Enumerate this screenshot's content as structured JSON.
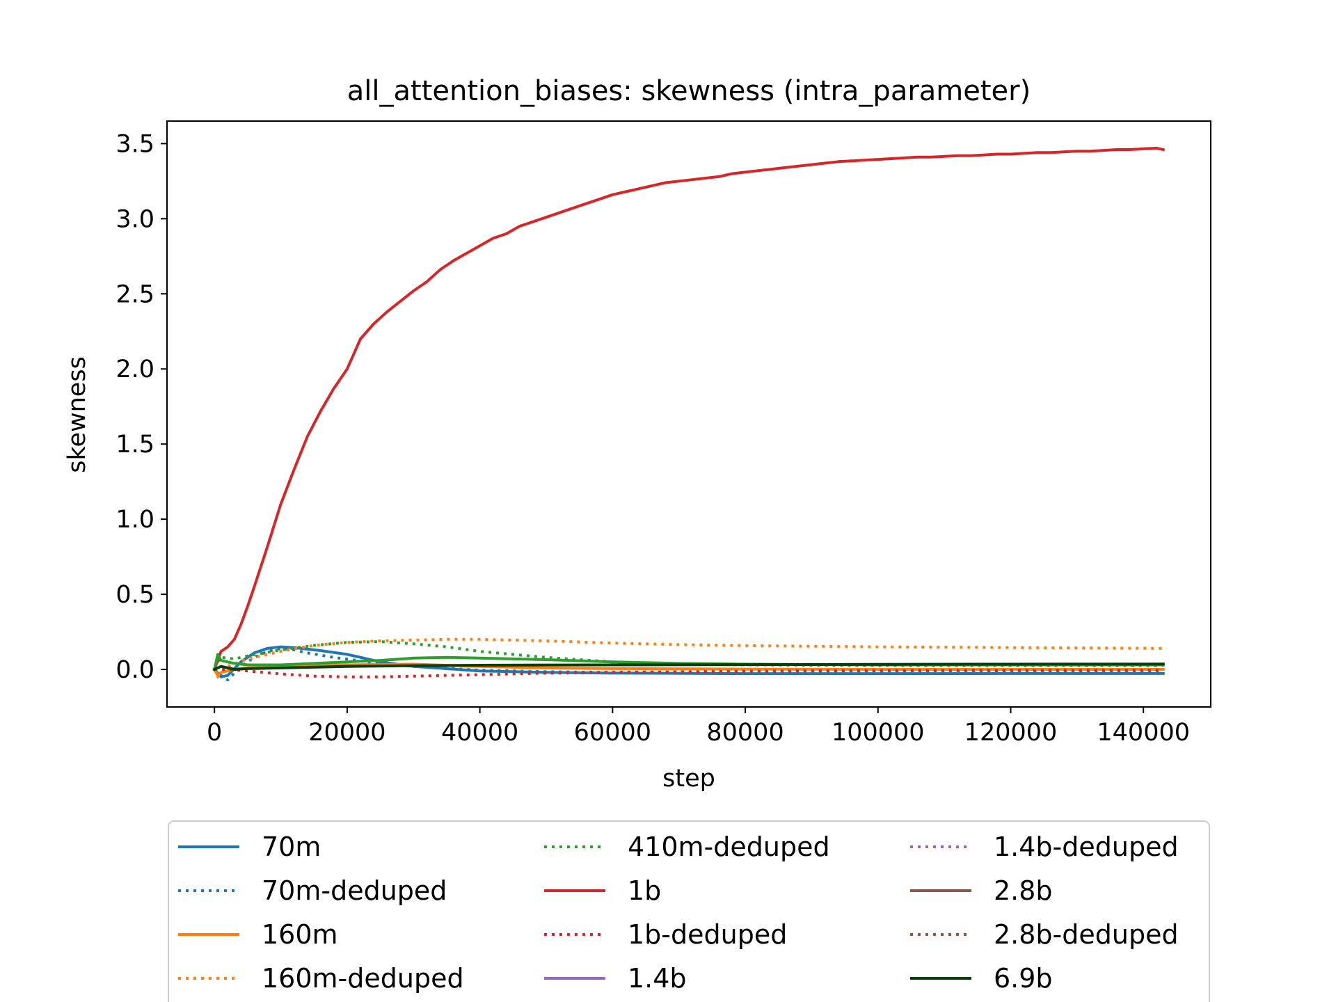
{
  "chart_data": {
    "type": "line",
    "title": "all_attention_biases: skewness (intra_parameter)",
    "xlabel": "step",
    "ylabel": "skewness",
    "xlim": [
      -7150,
      150150
    ],
    "ylim": [
      -0.25,
      3.65
    ],
    "xticks": [
      0,
      20000,
      40000,
      60000,
      80000,
      100000,
      120000,
      140000
    ],
    "yticks": [
      0.0,
      0.5,
      1.0,
      1.5,
      2.0,
      2.5,
      3.0,
      3.5
    ],
    "grid": false,
    "legend_placement": "below plot, 3 columns",
    "series": [
      {
        "name": "70m",
        "color": "#1f77b4",
        "style": "solid",
        "points": [
          [
            0,
            0.0
          ],
          [
            1000,
            -0.05
          ],
          [
            2000,
            -0.04
          ],
          [
            4000,
            0.05
          ],
          [
            6000,
            0.11
          ],
          [
            8000,
            0.14
          ],
          [
            10000,
            0.15
          ],
          [
            12000,
            0.145
          ],
          [
            14000,
            0.135
          ],
          [
            16000,
            0.125
          ],
          [
            20000,
            0.1
          ],
          [
            25000,
            0.05
          ],
          [
            30000,
            0.02
          ],
          [
            40000,
            -0.01
          ],
          [
            50000,
            -0.02
          ],
          [
            60000,
            -0.025
          ],
          [
            80000,
            -0.028
          ],
          [
            100000,
            -0.028
          ],
          [
            120000,
            -0.027
          ],
          [
            143000,
            -0.027
          ]
        ]
      },
      {
        "name": "70m-deduped",
        "color": "#1f77b4",
        "style": "dotted",
        "points": [
          [
            0,
            0.0
          ],
          [
            1000,
            -0.04
          ],
          [
            2000,
            -0.07
          ],
          [
            4000,
            0.02
          ],
          [
            6000,
            0.08
          ],
          [
            8000,
            0.12
          ],
          [
            10000,
            0.14
          ],
          [
            12000,
            0.13
          ],
          [
            14000,
            0.11
          ],
          [
            18000,
            0.08
          ],
          [
            25000,
            0.04
          ],
          [
            30000,
            0.02
          ],
          [
            40000,
            -0.005
          ],
          [
            50000,
            -0.015
          ],
          [
            60000,
            -0.02
          ],
          [
            80000,
            -0.02
          ],
          [
            100000,
            -0.02
          ],
          [
            120000,
            -0.02
          ],
          [
            143000,
            -0.02
          ]
        ]
      },
      {
        "name": "160m",
        "color": "#ff7f0e",
        "style": "solid",
        "points": [
          [
            0,
            0.0
          ],
          [
            500,
            -0.04
          ],
          [
            1000,
            -0.02
          ],
          [
            3000,
            0.0
          ],
          [
            5000,
            0.01
          ],
          [
            10000,
            0.015
          ],
          [
            20000,
            0.03
          ],
          [
            30000,
            0.035
          ],
          [
            40000,
            0.02
          ],
          [
            50000,
            0.01
          ],
          [
            60000,
            0.005
          ],
          [
            80000,
            0.002
          ],
          [
            100000,
            0.0
          ],
          [
            120000,
            0.0
          ],
          [
            143000,
            0.0
          ]
        ]
      },
      {
        "name": "160m-deduped",
        "color": "#ff7f0e",
        "style": "dotted",
        "points": [
          [
            0,
            0.0
          ],
          [
            500,
            -0.05
          ],
          [
            2000,
            0.02
          ],
          [
            5000,
            0.07
          ],
          [
            10000,
            0.12
          ],
          [
            15000,
            0.16
          ],
          [
            20000,
            0.18
          ],
          [
            25000,
            0.19
          ],
          [
            30000,
            0.195
          ],
          [
            35000,
            0.2
          ],
          [
            40000,
            0.2
          ],
          [
            50000,
            0.19
          ],
          [
            60000,
            0.175
          ],
          [
            70000,
            0.165
          ],
          [
            80000,
            0.158
          ],
          [
            100000,
            0.15
          ],
          [
            120000,
            0.145
          ],
          [
            143000,
            0.14
          ]
        ]
      },
      {
        "name": "410m-deduped",
        "color": "#2ca02c",
        "style": "dotted",
        "points": [
          [
            0,
            0.0
          ],
          [
            500,
            0.05
          ],
          [
            1000,
            0.08
          ],
          [
            3000,
            0.07
          ],
          [
            5000,
            0.09
          ],
          [
            10000,
            0.13
          ],
          [
            15000,
            0.16
          ],
          [
            20000,
            0.18
          ],
          [
            25000,
            0.185
          ],
          [
            30000,
            0.17
          ],
          [
            35000,
            0.15
          ],
          [
            40000,
            0.12
          ],
          [
            50000,
            0.08
          ],
          [
            60000,
            0.05
          ],
          [
            70000,
            0.035
          ],
          [
            80000,
            0.03
          ],
          [
            100000,
            0.025
          ],
          [
            120000,
            0.025
          ],
          [
            143000,
            0.025
          ]
        ]
      },
      {
        "name": "1b",
        "color": "#d62728",
        "style": "solid",
        "points": [
          [
            0,
            0.0
          ],
          [
            1000,
            0.12
          ],
          [
            2000,
            0.15
          ],
          [
            3000,
            0.2
          ],
          [
            4000,
            0.3
          ],
          [
            5000,
            0.42
          ],
          [
            6000,
            0.55
          ],
          [
            8000,
            0.82
          ],
          [
            10000,
            1.1
          ],
          [
            12000,
            1.33
          ],
          [
            14000,
            1.55
          ],
          [
            16000,
            1.72
          ],
          [
            18000,
            1.87
          ],
          [
            20000,
            2.0
          ],
          [
            22000,
            2.2
          ],
          [
            24000,
            2.3
          ],
          [
            26000,
            2.38
          ],
          [
            28000,
            2.45
          ],
          [
            30000,
            2.52
          ],
          [
            32000,
            2.58
          ],
          [
            34000,
            2.66
          ],
          [
            36000,
            2.72
          ],
          [
            38000,
            2.77
          ],
          [
            40000,
            2.82
          ],
          [
            42000,
            2.87
          ],
          [
            44000,
            2.9
          ],
          [
            46000,
            2.95
          ],
          [
            48000,
            2.98
          ],
          [
            50000,
            3.01
          ],
          [
            52000,
            3.04
          ],
          [
            54000,
            3.07
          ],
          [
            56000,
            3.1
          ],
          [
            58000,
            3.13
          ],
          [
            60000,
            3.16
          ],
          [
            62000,
            3.18
          ],
          [
            64000,
            3.2
          ],
          [
            66000,
            3.22
          ],
          [
            68000,
            3.24
          ],
          [
            70000,
            3.25
          ],
          [
            72000,
            3.26
          ],
          [
            74000,
            3.27
          ],
          [
            76000,
            3.28
          ],
          [
            78000,
            3.3
          ],
          [
            80000,
            3.31
          ],
          [
            82000,
            3.32
          ],
          [
            84000,
            3.33
          ],
          [
            86000,
            3.34
          ],
          [
            88000,
            3.35
          ],
          [
            90000,
            3.36
          ],
          [
            92000,
            3.37
          ],
          [
            94000,
            3.38
          ],
          [
            96000,
            3.385
          ],
          [
            98000,
            3.39
          ],
          [
            100000,
            3.395
          ],
          [
            102000,
            3.4
          ],
          [
            104000,
            3.405
          ],
          [
            106000,
            3.41
          ],
          [
            108000,
            3.41
          ],
          [
            110000,
            3.415
          ],
          [
            112000,
            3.42
          ],
          [
            114000,
            3.42
          ],
          [
            116000,
            3.425
          ],
          [
            118000,
            3.43
          ],
          [
            120000,
            3.43
          ],
          [
            122000,
            3.435
          ],
          [
            124000,
            3.44
          ],
          [
            126000,
            3.44
          ],
          [
            128000,
            3.445
          ],
          [
            130000,
            3.45
          ],
          [
            132000,
            3.45
          ],
          [
            134000,
            3.455
          ],
          [
            136000,
            3.46
          ],
          [
            138000,
            3.46
          ],
          [
            140000,
            3.465
          ],
          [
            142000,
            3.47
          ],
          [
            143000,
            3.46
          ]
        ]
      },
      {
        "name": "1b-deduped",
        "color": "#d62728",
        "style": "dotted",
        "points": [
          [
            0,
            0.0
          ],
          [
            2000,
            0.0
          ],
          [
            5000,
            -0.01
          ],
          [
            10000,
            -0.03
          ],
          [
            15000,
            -0.045
          ],
          [
            20000,
            -0.05
          ],
          [
            25000,
            -0.05
          ],
          [
            30000,
            -0.045
          ],
          [
            40000,
            -0.035
          ],
          [
            50000,
            -0.025
          ],
          [
            60000,
            -0.02
          ],
          [
            80000,
            -0.012
          ],
          [
            100000,
            -0.008
          ],
          [
            120000,
            -0.006
          ],
          [
            143000,
            -0.005
          ]
        ]
      },
      {
        "name": "1.4b",
        "color": "#9467bd",
        "style": "solid",
        "points": []
      },
      {
        "name": "1.4b-deduped",
        "color": "#9467bd",
        "style": "dotted",
        "points": []
      },
      {
        "name": "2.8b",
        "color": "#8c564b",
        "style": "solid",
        "points": []
      },
      {
        "name": "2.8b-deduped",
        "color": "#8c564b",
        "style": "dotted",
        "points": []
      },
      {
        "name": "410m",
        "color": "#2ca02c",
        "style": "solid",
        "legend": false,
        "points": [
          [
            0,
            0.0
          ],
          [
            500,
            0.1
          ],
          [
            1000,
            0.06
          ],
          [
            3000,
            0.04
          ],
          [
            5000,
            0.03
          ],
          [
            10000,
            0.03
          ],
          [
            15000,
            0.04
          ],
          [
            20000,
            0.05
          ],
          [
            25000,
            0.06
          ],
          [
            30000,
            0.075
          ],
          [
            35000,
            0.08
          ],
          [
            40000,
            0.075
          ],
          [
            50000,
            0.065
          ],
          [
            60000,
            0.05
          ],
          [
            70000,
            0.04
          ],
          [
            80000,
            0.035
          ],
          [
            100000,
            0.03
          ],
          [
            120000,
            0.03
          ],
          [
            143000,
            0.03
          ]
        ]
      },
      {
        "name": "6.9b",
        "color": "#0a3d0a",
        "style": "solid",
        "points": [
          [
            0,
            0.0
          ],
          [
            1000,
            0.02
          ],
          [
            3000,
            0.0
          ],
          [
            5000,
            0.005
          ],
          [
            10000,
            0.01
          ],
          [
            20000,
            0.02
          ],
          [
            30000,
            0.025
          ],
          [
            40000,
            0.028
          ],
          [
            60000,
            0.03
          ],
          [
            80000,
            0.032
          ],
          [
            100000,
            0.034
          ],
          [
            120000,
            0.035
          ],
          [
            143000,
            0.036
          ]
        ]
      }
    ]
  }
}
